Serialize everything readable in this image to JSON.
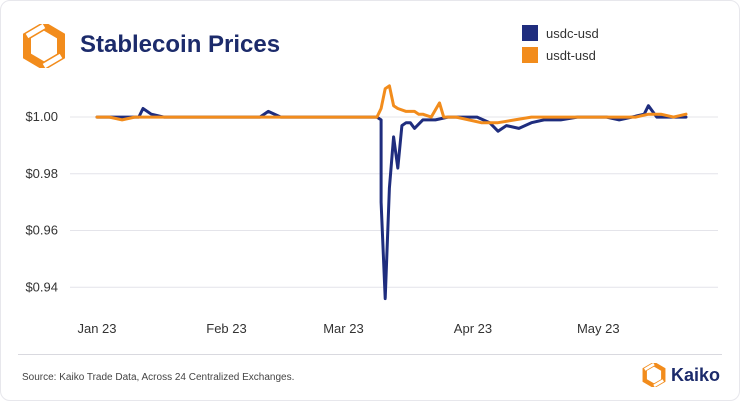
{
  "title": "Stablecoin Prices",
  "source": "Source: Kaiko Trade Data, Across 24 Centralized Exchanges.",
  "brand": {
    "name": "Kaiko",
    "logo_icon": "kaiko-hexagon-logo",
    "brand_color": "#f28c1c"
  },
  "chart_data": {
    "type": "line",
    "title": "Stablecoin Prices",
    "xlabel": "",
    "ylabel": "",
    "x_ticks": [
      "Jan 23",
      "Feb 23",
      "Mar 23",
      "Apr 23",
      "May 23"
    ],
    "y_ticks": [
      "$1.00",
      "$0.98",
      "$0.96",
      "$0.94"
    ],
    "ylim": [
      0.932,
      1.012
    ],
    "grid": true,
    "legend_position": "top-right",
    "series": [
      {
        "name": "usdc-usd",
        "color": "#1f2d7e",
        "points": [
          [
            "2023-01-01",
            1.0
          ],
          [
            "2023-01-03",
            1.0
          ],
          [
            "2023-01-06",
            1.0
          ],
          [
            "2023-01-09",
            1.0
          ],
          [
            "2023-01-11",
            1.0
          ],
          [
            "2023-01-12",
            1.003
          ],
          [
            "2023-01-14",
            1.001
          ],
          [
            "2023-01-17",
            1.0
          ],
          [
            "2023-01-20",
            1.0
          ],
          [
            "2023-01-24",
            1.0
          ],
          [
            "2023-01-28",
            1.0
          ],
          [
            "2023-02-01",
            1.0
          ],
          [
            "2023-02-05",
            1.0
          ],
          [
            "2023-02-09",
            1.0
          ],
          [
            "2023-02-11",
            1.002
          ],
          [
            "2023-02-14",
            1.0
          ],
          [
            "2023-02-18",
            1.0
          ],
          [
            "2023-02-22",
            1.0
          ],
          [
            "2023-02-26",
            1.0
          ],
          [
            "2023-03-01",
            1.0
          ],
          [
            "2023-03-03",
            1.0
          ],
          [
            "2023-03-06",
            1.0
          ],
          [
            "2023-03-09",
            1.0
          ],
          [
            "2023-03-10",
            0.999
          ],
          [
            "2023-03-10",
            0.97
          ],
          [
            "2023-03-11",
            0.936
          ],
          [
            "2023-03-12",
            0.975
          ],
          [
            "2023-03-13",
            0.993
          ],
          [
            "2023-03-14",
            0.982
          ],
          [
            "2023-03-15",
            0.997
          ],
          [
            "2023-03-16",
            0.998
          ],
          [
            "2023-03-17",
            0.998
          ],
          [
            "2023-03-18",
            0.996
          ],
          [
            "2023-03-20",
            0.999
          ],
          [
            "2023-03-23",
            0.999
          ],
          [
            "2023-03-26",
            1.0
          ],
          [
            "2023-03-30",
            1.0
          ],
          [
            "2023-04-02",
            1.0
          ],
          [
            "2023-04-05",
            0.998
          ],
          [
            "2023-04-07",
            0.995
          ],
          [
            "2023-04-09",
            0.997
          ],
          [
            "2023-04-12",
            0.996
          ],
          [
            "2023-04-15",
            0.998
          ],
          [
            "2023-04-18",
            0.999
          ],
          [
            "2023-04-22",
            0.999
          ],
          [
            "2023-04-26",
            1.0
          ],
          [
            "2023-04-30",
            1.0
          ],
          [
            "2023-05-03",
            1.0
          ],
          [
            "2023-05-06",
            0.999
          ],
          [
            "2023-05-09",
            1.0
          ],
          [
            "2023-05-12",
            1.001
          ],
          [
            "2023-05-13",
            1.004
          ],
          [
            "2023-05-15",
            1.0
          ],
          [
            "2023-05-19",
            1.0
          ],
          [
            "2023-05-22",
            1.0
          ]
        ]
      },
      {
        "name": "usdt-usd",
        "color": "#f28c1c",
        "points": [
          [
            "2023-01-01",
            1.0
          ],
          [
            "2023-01-04",
            1.0
          ],
          [
            "2023-01-07",
            0.999
          ],
          [
            "2023-01-10",
            1.0
          ],
          [
            "2023-01-14",
            1.0
          ],
          [
            "2023-01-18",
            1.0
          ],
          [
            "2023-01-23",
            1.0
          ],
          [
            "2023-01-28",
            1.0
          ],
          [
            "2023-02-02",
            1.0
          ],
          [
            "2023-02-07",
            1.0
          ],
          [
            "2023-02-12",
            1.0
          ],
          [
            "2023-02-16",
            1.0
          ],
          [
            "2023-02-21",
            1.0
          ],
          [
            "2023-02-25",
            1.0
          ],
          [
            "2023-03-01",
            1.0
          ],
          [
            "2023-03-04",
            1.0
          ],
          [
            "2023-03-06",
            1.0
          ],
          [
            "2023-03-08",
            1.0
          ],
          [
            "2023-03-09",
            1.0
          ],
          [
            "2023-03-10",
            1.003
          ],
          [
            "2023-03-11",
            1.01
          ],
          [
            "2023-03-12",
            1.011
          ],
          [
            "2023-03-13",
            1.004
          ],
          [
            "2023-03-14",
            1.003
          ],
          [
            "2023-03-16",
            1.002
          ],
          [
            "2023-03-18",
            1.002
          ],
          [
            "2023-03-19",
            1.001
          ],
          [
            "2023-03-20",
            1.001
          ],
          [
            "2023-03-22",
            1.0
          ],
          [
            "2023-03-24",
            1.005
          ],
          [
            "2023-03-25",
            1.0
          ],
          [
            "2023-03-28",
            1.0
          ],
          [
            "2023-03-31",
            0.999
          ],
          [
            "2023-04-03",
            0.998
          ],
          [
            "2023-04-07",
            0.998
          ],
          [
            "2023-04-11",
            0.999
          ],
          [
            "2023-04-15",
            1.0
          ],
          [
            "2023-04-19",
            1.0
          ],
          [
            "2023-04-24",
            1.0
          ],
          [
            "2023-04-28",
            1.0
          ],
          [
            "2023-05-02",
            1.0
          ],
          [
            "2023-05-06",
            1.0
          ],
          [
            "2023-05-10",
            1.0
          ],
          [
            "2023-05-13",
            1.001
          ],
          [
            "2023-05-16",
            1.001
          ],
          [
            "2023-05-19",
            1.0
          ],
          [
            "2023-05-22",
            1.001
          ]
        ]
      }
    ]
  }
}
